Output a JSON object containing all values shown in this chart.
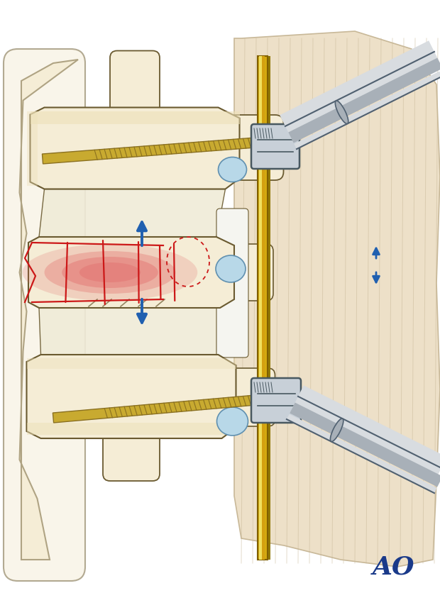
{
  "bg_color": "#ffffff",
  "ao_text": "AO",
  "ao_color": "#1a3a8a",
  "ao_fontsize": 26,
  "bone_light": "#f5edd6",
  "bone_mid": "#ede0b8",
  "bone_dark": "#d4bc7a",
  "bone_outline": "#6a5a30",
  "screw_color": "#c8aa30",
  "screw_thread": "#8a7020",
  "pin_gold": "#d4aa10",
  "pin_highlight": "#f0e060",
  "pin_dark": "#907808",
  "instrument_light": "#d8dce0",
  "instrument_mid": "#a8b0b8",
  "instrument_dark": "#506070",
  "clamp_light": "#c8d0d8",
  "clamp_dark": "#485860",
  "red_fracture": "#cc1818",
  "red_fill": "#e06060",
  "red_gradient": "#e89080",
  "blue_arrow": "#2060b0",
  "skin_color": "#ede0c8",
  "skin_line": "#c8b898",
  "nerve_color": "#b8d8e8",
  "nerve_outline": "#6090b0",
  "disc_color": "#e8f0e0",
  "canal_white": "#f0f4f8"
}
